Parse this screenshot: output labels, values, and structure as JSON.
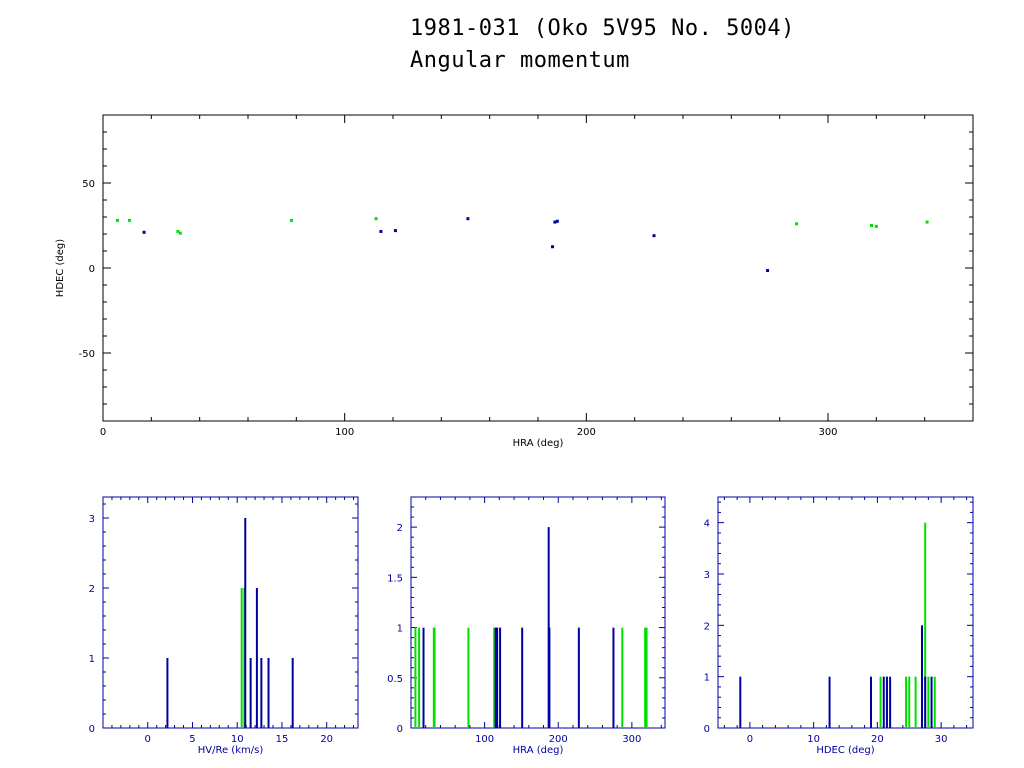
{
  "title_line1": "1981-031 (Oko 5V95 No. 5004)",
  "title_line2": "Angular momentum",
  "colors": {
    "series_a": "#00e000",
    "series_b": "#0000a0",
    "axis_main": "#000000",
    "axis_hist": "#0000a0"
  },
  "chart_data": [
    {
      "type": "scatter",
      "xlabel": "HRA (deg)",
      "ylabel": "HDEC (deg)",
      "xlim": [
        0,
        360
      ],
      "ylim": [
        -90,
        90
      ],
      "xticks": [
        0,
        100,
        200,
        300
      ],
      "yticks": [
        -50,
        0,
        50
      ],
      "series": [
        {
          "color": "#00e000",
          "points": [
            [
              6,
              28
            ],
            [
              11,
              28
            ],
            [
              31,
              21.5
            ],
            [
              32,
              20.5
            ],
            [
              78,
              28
            ],
            [
              113,
              29
            ],
            [
              287,
              26
            ],
            [
              318,
              25
            ],
            [
              320,
              24.5
            ],
            [
              341,
              27
            ]
          ]
        },
        {
          "color": "#0000a0",
          "points": [
            [
              17,
              21
            ],
            [
              115,
              21.5
            ],
            [
              121,
              22
            ],
            [
              151,
              29
            ],
            [
              186,
              12.5
            ],
            [
              187,
              27
            ],
            [
              188,
              27.5
            ],
            [
              228,
              19
            ],
            [
              275,
              -1.5
            ]
          ]
        }
      ]
    },
    {
      "type": "bar",
      "xlabel": "HV/Re (km/s)",
      "xlim": [
        -5,
        23.5
      ],
      "ylim": [
        0,
        3.3
      ],
      "xticks": [
        0,
        5,
        10,
        15,
        20
      ],
      "yticks": [
        0,
        1,
        2,
        3
      ],
      "series": [
        {
          "color": "#00e000",
          "bars": [
            [
              10.5,
              2
            ],
            [
              10.8,
              2
            ]
          ]
        },
        {
          "color": "#0000a0",
          "bars": [
            [
              2.2,
              1
            ],
            [
              10.9,
              3
            ],
            [
              11.5,
              1
            ],
            [
              12.2,
              2
            ],
            [
              12.7,
              1
            ],
            [
              13.5,
              1
            ],
            [
              16.2,
              1
            ]
          ]
        }
      ]
    },
    {
      "type": "bar",
      "xlabel": "HRA (deg)",
      "xlim": [
        0,
        345
      ],
      "ylim": [
        0,
        2.3
      ],
      "xticks": [
        100,
        200,
        300
      ],
      "yticks": [
        0,
        0.5,
        1,
        1.5,
        2
      ],
      "yticklabels": [
        "0",
        "0.5",
        "1",
        "1.5",
        "2"
      ],
      "series": [
        {
          "color": "#00e000",
          "bars": [
            [
              6,
              1
            ],
            [
              11,
              1
            ],
            [
              31,
              1
            ],
            [
              32,
              1
            ],
            [
              78,
              1
            ],
            [
              113,
              1
            ],
            [
              287,
              1
            ],
            [
              318,
              1
            ],
            [
              320,
              1
            ]
          ]
        },
        {
          "color": "#0000a0",
          "bars": [
            [
              17,
              1
            ],
            [
              115,
              1
            ],
            [
              117,
              1
            ],
            [
              121,
              1
            ],
            [
              151,
              1
            ],
            [
              187,
              2
            ],
            [
              188,
              1
            ],
            [
              228,
              1
            ],
            [
              275,
              1
            ]
          ]
        }
      ]
    },
    {
      "type": "bar",
      "xlabel": "HDEC (deg)",
      "xlim": [
        -5,
        35
      ],
      "ylim": [
        0,
        4.5
      ],
      "xticks": [
        0,
        10,
        20,
        30
      ],
      "yticks": [
        0,
        1,
        2,
        3,
        4
      ],
      "series": [
        {
          "color": "#00e000",
          "bars": [
            [
              20.5,
              1
            ],
            [
              21.5,
              1
            ],
            [
              24.5,
              1
            ],
            [
              25,
              1
            ],
            [
              26,
              1
            ],
            [
              27.5,
              4
            ],
            [
              28,
              1
            ],
            [
              29,
              1
            ]
          ]
        },
        {
          "color": "#0000a0",
          "bars": [
            [
              -1.5,
              1
            ],
            [
              12.5,
              1
            ],
            [
              19,
              1
            ],
            [
              21,
              1
            ],
            [
              21.5,
              1
            ],
            [
              22,
              1
            ],
            [
              27,
              2
            ],
            [
              27.5,
              1
            ],
            [
              28.5,
              1
            ]
          ]
        }
      ]
    }
  ]
}
